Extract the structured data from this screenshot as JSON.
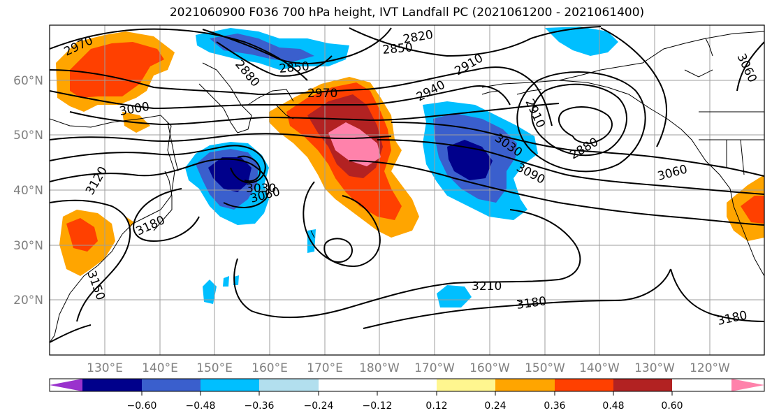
{
  "title": "2021060900 F036 700 hPa height, IVT Landfall PC (2021061200 - 2021061400)",
  "map": {
    "lon_labels": [
      "130°E",
      "140°E",
      "150°E",
      "160°E",
      "170°E",
      "180°W",
      "170°W",
      "160°W",
      "150°W",
      "140°W",
      "130°W",
      "120°W"
    ],
    "lat_labels": [
      "60°N",
      "50°N",
      "40°N",
      "30°N",
      "20°N"
    ],
    "contour_labels": [
      "2970",
      "2820",
      "2850",
      "2880",
      "2850",
      "2910",
      "2940",
      "2970",
      "3000",
      "2910",
      "3060",
      "3120",
      "3030",
      "3060",
      "3180",
      "3030",
      "3090",
      "2880",
      "3060",
      "3210",
      "3180",
      "3150",
      "3180"
    ]
  },
  "colorbar": {
    "colors": [
      "#9a32cd",
      "#00008b",
      "#3a5fcd",
      "#00bfff",
      "#b2dfee",
      "#ffffff",
      "#ffffff",
      "#fff68f",
      "#ffa500",
      "#ff4000",
      "#b22222",
      "#ff82ab"
    ],
    "tick_labels": [
      "−0.60",
      "−0.48",
      "−0.36",
      "−0.24",
      "−0.12",
      "0.12",
      "0.24",
      "0.36",
      "0.48",
      "0.60"
    ]
  }
}
